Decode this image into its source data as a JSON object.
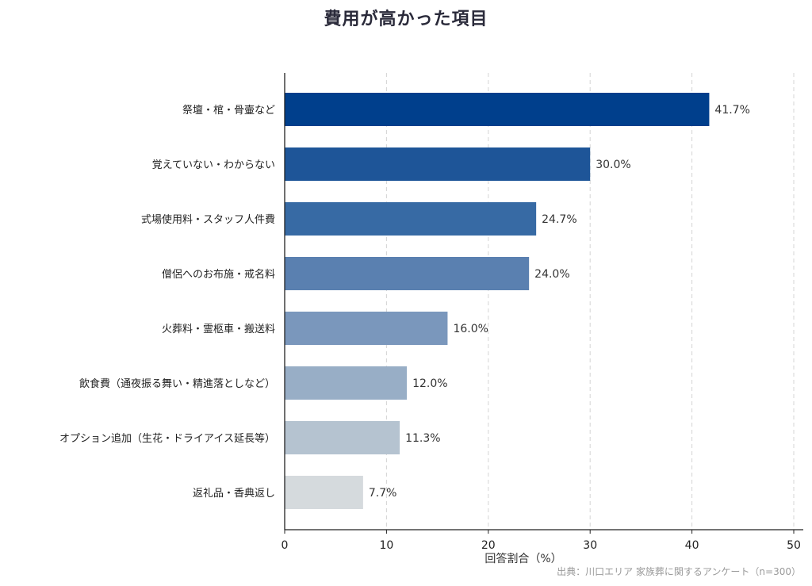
{
  "chart_data": {
    "type": "bar",
    "orientation": "horizontal",
    "title": "費用が高かった項目",
    "xlabel": "回答割合（%）",
    "ylabel": "",
    "xlim": [
      0,
      50
    ],
    "xticks": [
      0,
      10,
      20,
      30,
      40,
      50
    ],
    "grid": "vertical-dashed",
    "categories": [
      "祭壇・棺・骨壷など",
      "覚えていない・わからない",
      "式場使用料・スタッフ人件費",
      "僧侶へのお布施・戒名料",
      "火葬料・霊柩車・搬送料",
      "飲食費（通夜振る舞い・精進落としなど）",
      "オプション追加（生花・ドライアイス延長等）",
      "返礼品・香典返し"
    ],
    "values": [
      41.7,
      30.0,
      24.7,
      24.0,
      16.0,
      12.0,
      11.3,
      7.7
    ],
    "value_labels": [
      "41.7%",
      "30.0%",
      "24.7%",
      "24.0%",
      "16.0%",
      "12.0%",
      "11.3%",
      "7.7%"
    ],
    "bar_colors": [
      "#003f8c",
      "#1e5598",
      "#376aa4",
      "#5a80b0",
      "#7a97bc",
      "#98aec6",
      "#b5c3d0",
      "#d5dadd"
    ],
    "source": "出典：川口エリア 家族葬に関するアンケート（n=300）"
  }
}
